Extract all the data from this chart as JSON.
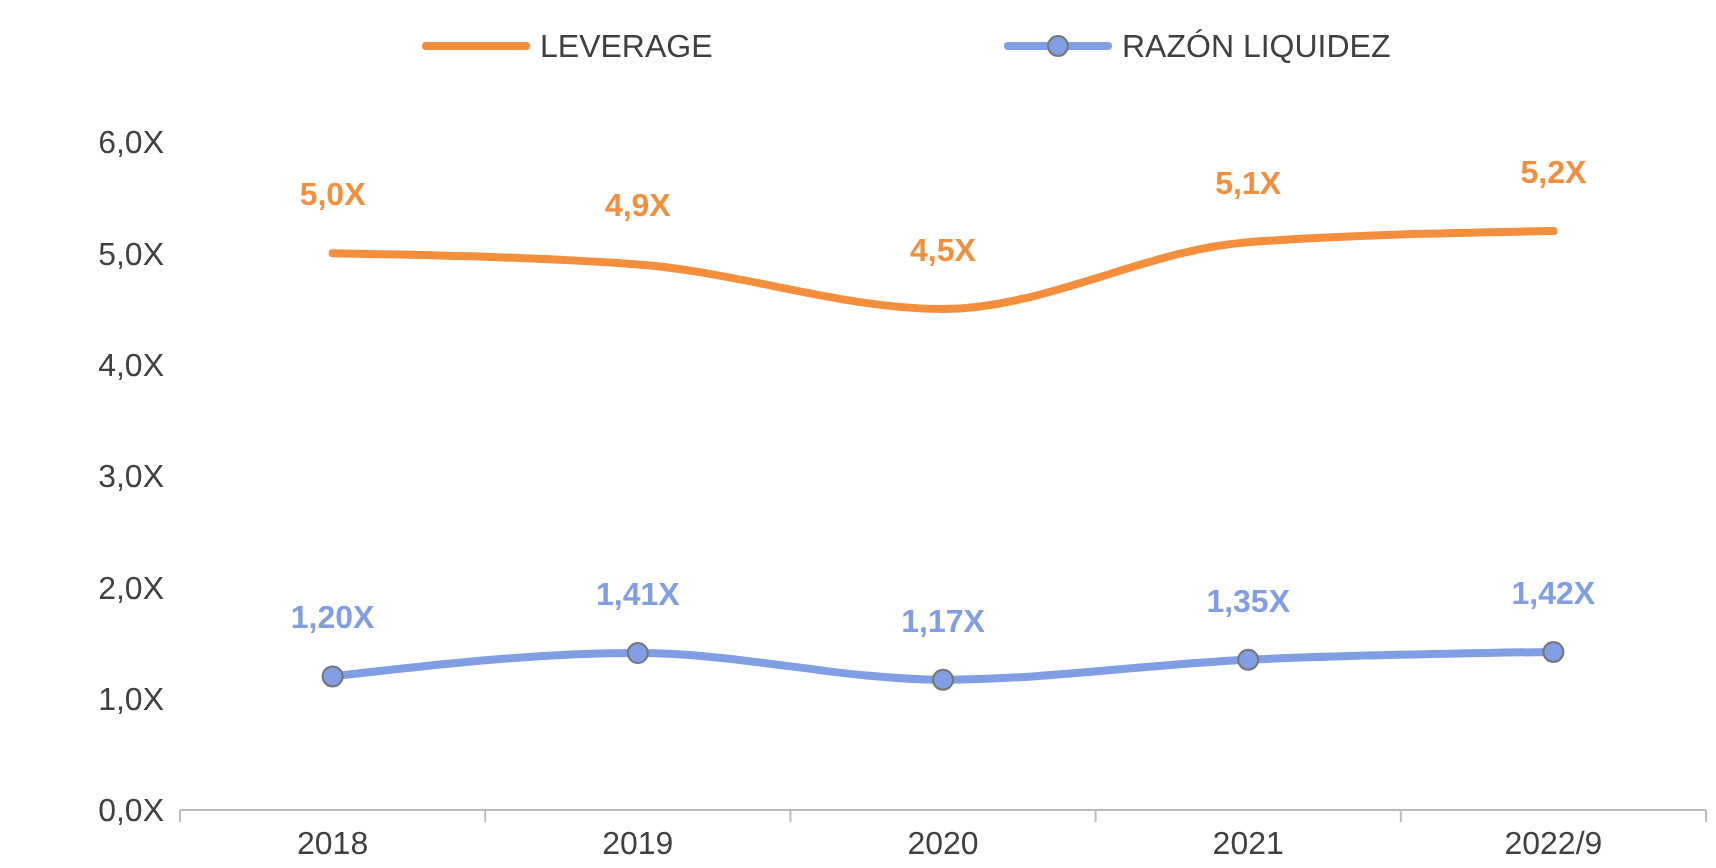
{
  "chart_data": {
    "type": "line",
    "categories": [
      "2018",
      "2019",
      "2020",
      "2021",
      "2022/9"
    ],
    "series": [
      {
        "name": "LEVERAGE",
        "color": "#f28e3c",
        "values": [
          5.0,
          4.9,
          4.5,
          5.1,
          5.2
        ],
        "marker": "none",
        "value_labels": [
          "5,0X",
          "4,9X",
          "4,5X",
          "5,1X",
          "5,2X"
        ]
      },
      {
        "name": "RAZÓN LIQUIDEZ",
        "color": "#7f9ee3",
        "values": [
          1.2,
          1.41,
          1.17,
          1.35,
          1.42
        ],
        "marker": "circle",
        "value_labels": [
          "1,20X",
          "1,41X",
          "1,17X",
          "1,35X",
          "1,42X"
        ]
      }
    ],
    "ylim": [
      0,
      6
    ],
    "yticks": [
      {
        "value": 0,
        "label": "0,0X"
      },
      {
        "value": 1,
        "label": "1,0X"
      },
      {
        "value": 2,
        "label": "2,0X"
      },
      {
        "value": 3,
        "label": "3,0X"
      },
      {
        "value": 4,
        "label": "4,0X"
      },
      {
        "value": 5,
        "label": "5,0X"
      },
      {
        "value": 6,
        "label": "6,0X"
      }
    ],
    "grid": false,
    "legend": "top",
    "line_style": "solid"
  }
}
